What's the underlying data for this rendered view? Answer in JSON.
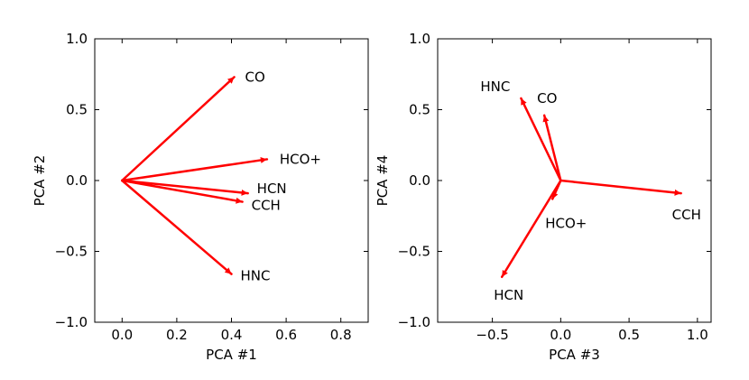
{
  "colors": {
    "vector": "#ff0000",
    "axes": "#000000",
    "background": "#ffffff"
  },
  "chart_data": [
    {
      "type": "biplot",
      "xlabel": "PCA #1",
      "ylabel": "PCA #2",
      "xlim": [
        -0.1,
        0.9
      ],
      "ylim": [
        -1.0,
        1.0
      ],
      "xticks": [
        0.0,
        0.2,
        0.4,
        0.6,
        0.8
      ],
      "xtick_labels": [
        "0.0",
        "0.2",
        "0.4",
        "0.6",
        "0.8"
      ],
      "yticks": [
        -1.0,
        -0.5,
        0.0,
        0.5,
        1.0
      ],
      "ytick_labels": [
        "−1.0",
        "−0.5",
        "0.0",
        "0.5",
        "1.0"
      ],
      "grid": false,
      "vectors": [
        {
          "name": "CO",
          "x": 0.41,
          "y": 0.73
        },
        {
          "name": "HCO+",
          "x": 0.53,
          "y": 0.15
        },
        {
          "name": "HCN",
          "x": 0.46,
          "y": -0.09
        },
        {
          "name": "CCH",
          "x": 0.44,
          "y": -0.15
        },
        {
          "name": "HNC",
          "x": 0.4,
          "y": -0.66
        }
      ]
    },
    {
      "type": "biplot",
      "xlabel": "PCA #3",
      "ylabel": "PCA #4",
      "xlim": [
        -0.9,
        1.1
      ],
      "ylim": [
        -1.0,
        1.0
      ],
      "xticks": [
        -0.5,
        0.0,
        0.5,
        1.0
      ],
      "xtick_labels": [
        "−0.5",
        "0.0",
        "0.5",
        "1.0"
      ],
      "yticks": [
        -1.0,
        -0.5,
        0.0,
        0.5,
        1.0
      ],
      "ytick_labels": [
        "−1.0",
        "−0.5",
        "0.0",
        "0.5",
        "1.0"
      ],
      "grid": false,
      "vectors": [
        {
          "name": "HNC",
          "x": -0.29,
          "y": 0.58
        },
        {
          "name": "CO",
          "x": -0.12,
          "y": 0.46
        },
        {
          "name": "HCO+",
          "x": -0.06,
          "y": -0.13
        },
        {
          "name": "CCH",
          "x": 0.88,
          "y": -0.09
        },
        {
          "name": "HCN",
          "x": -0.43,
          "y": -0.68
        }
      ]
    }
  ]
}
